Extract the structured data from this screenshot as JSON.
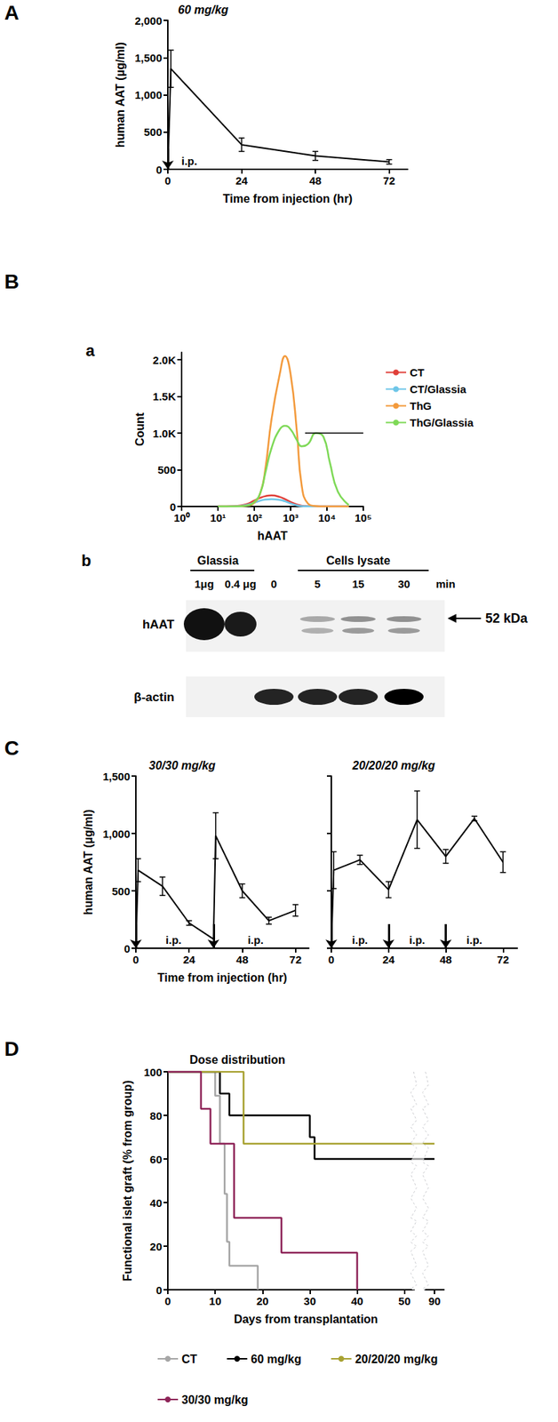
{
  "chart_data": [
    {
      "panel": "A",
      "type": "line",
      "title": "60 mg/kg",
      "x_label": "Time from injection (hr)",
      "y_label": "human AAT (µg/ml)",
      "x": [
        0,
        1,
        24,
        48,
        72
      ],
      "values": [
        0,
        1350,
        330,
        180,
        100
      ],
      "errors": [
        null,
        250,
        90,
        60,
        30
      ],
      "color": "#000000",
      "xlim": [
        0,
        78
      ],
      "xticks": [
        0,
        24,
        48,
        72
      ],
      "ylim": [
        0,
        2000
      ],
      "yticks": [
        0,
        500,
        {
          "value": 1000,
          "label": "1,000"
        },
        {
          "value": 1500,
          "label": "1,500"
        },
        {
          "value": 2000,
          "label": "2,000"
        }
      ],
      "injections": [
        0
      ],
      "annotations": [
        {
          "x": 7,
          "text": "i.p."
        }
      ]
    },
    {
      "panel": "B",
      "subpanel": "a",
      "type": "line",
      "log": "x",
      "x_label": "hAAT",
      "y_label": "Count",
      "legend": "right",
      "x": [
        10,
        30,
        60,
        100,
        150,
        200,
        300,
        500,
        700,
        1000,
        1500,
        2000,
        3000,
        5000,
        8000,
        12000,
        20000,
        40000
      ],
      "series": [
        {
          "name": "CT",
          "color": "#e0403a",
          "values": [
            0,
            5,
            30,
            80,
            120,
            140,
            150,
            130,
            100,
            60,
            25,
            10,
            3,
            0,
            0,
            0,
            0,
            0
          ]
        },
        {
          "name": "CT/Glassia",
          "color": "#6ec6e8",
          "values": [
            0,
            3,
            20,
            50,
            80,
            95,
            100,
            90,
            70,
            40,
            15,
            5,
            2,
            0,
            0,
            0,
            0,
            0
          ]
        },
        {
          "name": "ThG",
          "color": "#f39a3c",
          "values": [
            0,
            0,
            10,
            50,
            200,
            500,
            1200,
            1800,
            2050,
            1800,
            1000,
            300,
            40,
            5,
            0,
            0,
            0,
            0
          ]
        },
        {
          "name": "ThG/Glassia",
          "color": "#7ed957",
          "values": [
            0,
            0,
            10,
            60,
            200,
            450,
            800,
            1050,
            1100,
            1050,
            900,
            820,
            850,
            1000,
            950,
            600,
            200,
            20
          ]
        }
      ],
      "gate": {
        "x": [
          2500,
          100000
        ],
        "y": 1000
      },
      "xlim": [
        1,
        100000
      ],
      "xticks": [
        {
          "value": 1,
          "label": "10⁰"
        },
        {
          "value": 10,
          "label": "10¹"
        },
        {
          "value": 100,
          "label": "10²"
        },
        {
          "value": 1000,
          "label": "10³"
        },
        {
          "value": 10000,
          "label": "10⁴"
        },
        {
          "value": 100000,
          "label": "10⁵"
        }
      ],
      "ylim": [
        0,
        2100
      ],
      "yticks": [
        0,
        500,
        {
          "value": 1000,
          "label": "1.0K"
        },
        {
          "value": 1500,
          "label": "1.5K"
        },
        {
          "value": 2000,
          "label": "2.0K"
        }
      ]
    },
    {
      "panel": "C",
      "type": "line",
      "title": "30/30 mg/kg",
      "x_label": "Time from injection (hr)",
      "y_label": "human AAT (µg/ml)",
      "x": [
        0,
        1,
        12,
        24,
        35,
        36,
        48,
        60,
        72
      ],
      "values": [
        0,
        680,
        540,
        220,
        80,
        980,
        500,
        240,
        330
      ],
      "errors": [
        null,
        100,
        80,
        20,
        null,
        200,
        60,
        30,
        50
      ],
      "color": "#000000",
      "xlim": [
        0,
        78
      ],
      "xticks": [
        0,
        24,
        48,
        72
      ],
      "ylim": [
        0,
        1500
      ],
      "yticks": [
        0,
        500,
        {
          "value": 1000,
          "label": "1,000"
        },
        {
          "value": 1500,
          "label": "1,500"
        }
      ],
      "injections": [
        0,
        35
      ],
      "annotations": [
        {
          "x": 17,
          "text": "i.p."
        },
        {
          "x": 54,
          "text": "i.p."
        }
      ]
    },
    {
      "type": "line",
      "title": "20/20/20 mg/kg",
      "tick_labels": "x",
      "x": [
        0,
        1,
        12,
        24,
        36,
        48,
        60,
        72
      ],
      "values": [
        0,
        680,
        770,
        510,
        1120,
        800,
        1130,
        750
      ],
      "errors": [
        null,
        160,
        40,
        70,
        250,
        60,
        20,
        90
      ],
      "color": "#000000",
      "xlim": [
        0,
        78
      ],
      "xticks": [
        0,
        24,
        48,
        72
      ],
      "ylim": [
        0,
        1500
      ],
      "yticks": [
        0,
        500,
        1000,
        1500
      ],
      "injections": [
        0,
        24,
        48
      ],
      "annotations": [
        {
          "x": 12,
          "text": "i.p."
        },
        {
          "x": 36,
          "text": "i.p."
        },
        {
          "x": 60,
          "text": "i.p."
        }
      ]
    },
    {
      "panel": "D",
      "type": "step",
      "title": "Dose distribution",
      "x_label": "Days from transplantation",
      "y_label": "Functional islet graft (% from group)",
      "legend": "bottom",
      "xlim": [
        0,
        92
      ],
      "xticks": [
        0,
        10,
        20,
        30,
        40,
        50,
        90
      ],
      "xbreak": [
        52,
        88
      ],
      "ylim": [
        0,
        100
      ],
      "yticks": [
        0,
        20,
        40,
        60,
        80,
        100
      ],
      "series": [
        {
          "name": "CT",
          "color": "#a6a6a6",
          "x": [
            0,
            10,
            11,
            12,
            12.5,
            13,
            19
          ],
          "values": [
            100,
            89,
            67,
            44,
            22,
            11,
            0
          ]
        },
        {
          "name": "60 mg/kg",
          "color": "#000000",
          "x": [
            0,
            11,
            13,
            30,
            31,
            90
          ],
          "values": [
            100,
            90,
            80,
            70,
            60,
            60
          ]
        },
        {
          "name": "20/20/20 mg/kg",
          "color": "#a8a232",
          "x": [
            0,
            16,
            90
          ],
          "values": [
            100,
            67,
            67
          ]
        },
        {
          "name": "30/30 mg/kg",
          "color": "#8e2458",
          "x": [
            0,
            7,
            9,
            14,
            24,
            40
          ],
          "values": [
            100,
            83,
            67,
            33,
            17,
            0
          ]
        }
      ]
    }
  ],
  "blot": {
    "subpanel": "b",
    "groups": [
      {
        "label": "Glassia",
        "lanes": [
          "1μg",
          "0.4 μg"
        ]
      },
      {
        "label": "Cells lysate",
        "lanes": [
          "0",
          "5",
          "15",
          "30"
        ],
        "unit": "min"
      }
    ],
    "rows": [
      "hAAT",
      "β-actin"
    ],
    "marker": "52 kDa"
  }
}
